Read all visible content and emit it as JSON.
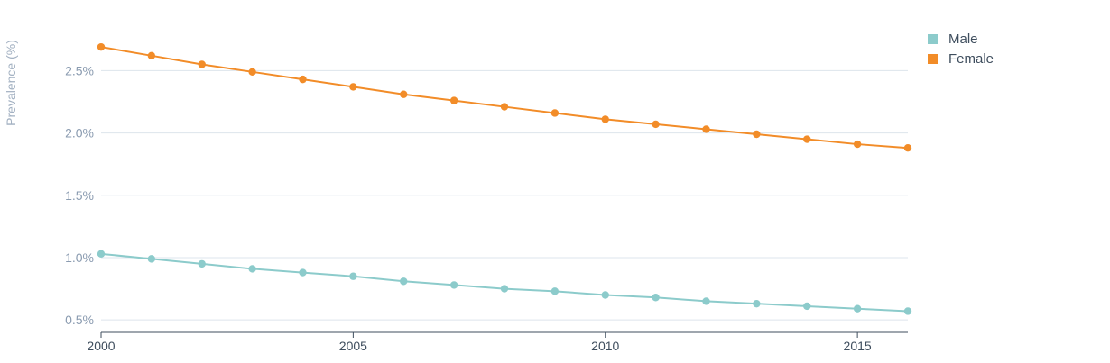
{
  "chart_data": {
    "type": "line",
    "title": "",
    "xlabel": "",
    "ylabel": "Prevalence (%)",
    "x": [
      2000,
      2001,
      2002,
      2003,
      2004,
      2005,
      2006,
      2007,
      2008,
      2009,
      2010,
      2011,
      2012,
      2013,
      2014,
      2015,
      2016
    ],
    "xlim": [
      2000,
      2016
    ],
    "ylim": [
      0.4,
      2.85
    ],
    "x_ticks": [
      2000,
      2005,
      2010,
      2015
    ],
    "x_tick_labels": [
      "2000",
      "2005",
      "2010",
      "2015"
    ],
    "y_ticks": [
      0.5,
      1.0,
      1.5,
      2.0,
      2.5
    ],
    "y_tick_labels": [
      "0.5%",
      "1.0%",
      "1.5%",
      "2.0%",
      "2.5%"
    ],
    "grid": true,
    "legend_position": "top-right",
    "series": [
      {
        "name": "Male",
        "color": "#8ccbcb",
        "values": [
          1.03,
          0.99,
          0.95,
          0.91,
          0.88,
          0.85,
          0.81,
          0.78,
          0.75,
          0.73,
          0.7,
          0.68,
          0.65,
          0.63,
          0.61,
          0.59,
          0.57
        ]
      },
      {
        "name": "Female",
        "color": "#f28c28",
        "values": [
          2.69,
          2.62,
          2.55,
          2.49,
          2.43,
          2.37,
          2.31,
          2.26,
          2.21,
          2.16,
          2.11,
          2.07,
          2.03,
          1.99,
          1.95,
          1.91,
          1.88
        ]
      }
    ]
  },
  "colors": {
    "grid": "#dde4ec",
    "axis": "#3f4e5e"
  }
}
